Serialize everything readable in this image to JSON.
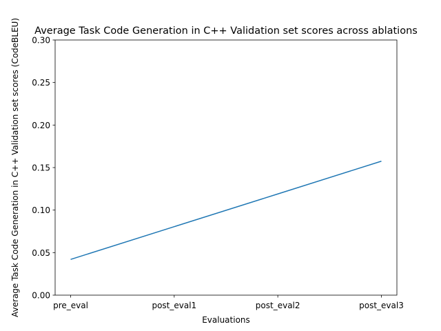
{
  "chart_data": {
    "type": "line",
    "title": "Average Task Code Generation in C++ Validation set scores across ablations",
    "xlabel": "Evaluations",
    "ylabel": "Average Task Code Generation in C++ Validation set scores (CodeBLEU)",
    "categories": [
      "pre_eval",
      "post_eval1",
      "post_eval2",
      "post_eval3"
    ],
    "series": [
      {
        "values": [
          0.042,
          0.0805,
          0.119,
          0.1575
        ],
        "color": "#1f77b4"
      }
    ],
    "ylim": [
      0,
      0.3
    ],
    "yticks": [
      0.0,
      0.05,
      0.1,
      0.15,
      0.2,
      0.25,
      0.3
    ],
    "ytick_labels": [
      "0.00",
      "0.05",
      "0.10",
      "0.15",
      "0.20",
      "0.25",
      "0.30"
    ],
    "grid": false,
    "legend": false
  }
}
